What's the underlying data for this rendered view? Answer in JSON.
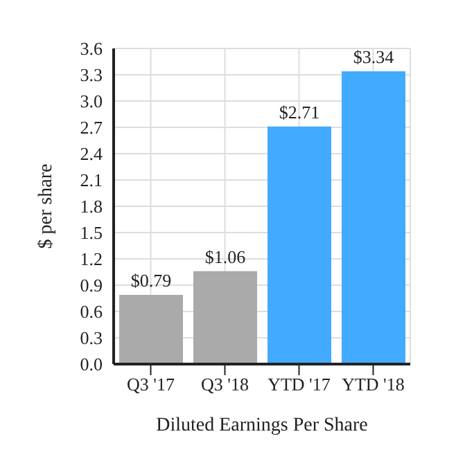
{
  "chart_data": {
    "type": "bar",
    "xlabel": "Diluted Earnings Per Share",
    "ylabel": "$ per share",
    "categories": [
      "Q3 '17",
      "Q3 '18",
      "YTD '17",
      "YTD '18"
    ],
    "values": [
      0.79,
      1.06,
      2.71,
      3.34
    ],
    "colors": [
      "#aaaaaa",
      "#aaaaaa",
      "#42aaff",
      "#42aaff"
    ],
    "value_labels": [
      "$0.79",
      "$1.06",
      "$2.71",
      "$3.34"
    ],
    "ylim": [
      0,
      3.6
    ],
    "yticks": [
      {
        "value": 0,
        "label": "0.0"
      },
      0.3,
      0.6,
      0.9,
      1.2,
      1.5,
      1.8,
      2.1,
      2.4,
      2.7,
      {
        "value": 3,
        "label": "3.0"
      },
      3.3,
      3.6
    ],
    "grid": true,
    "legend": false
  }
}
